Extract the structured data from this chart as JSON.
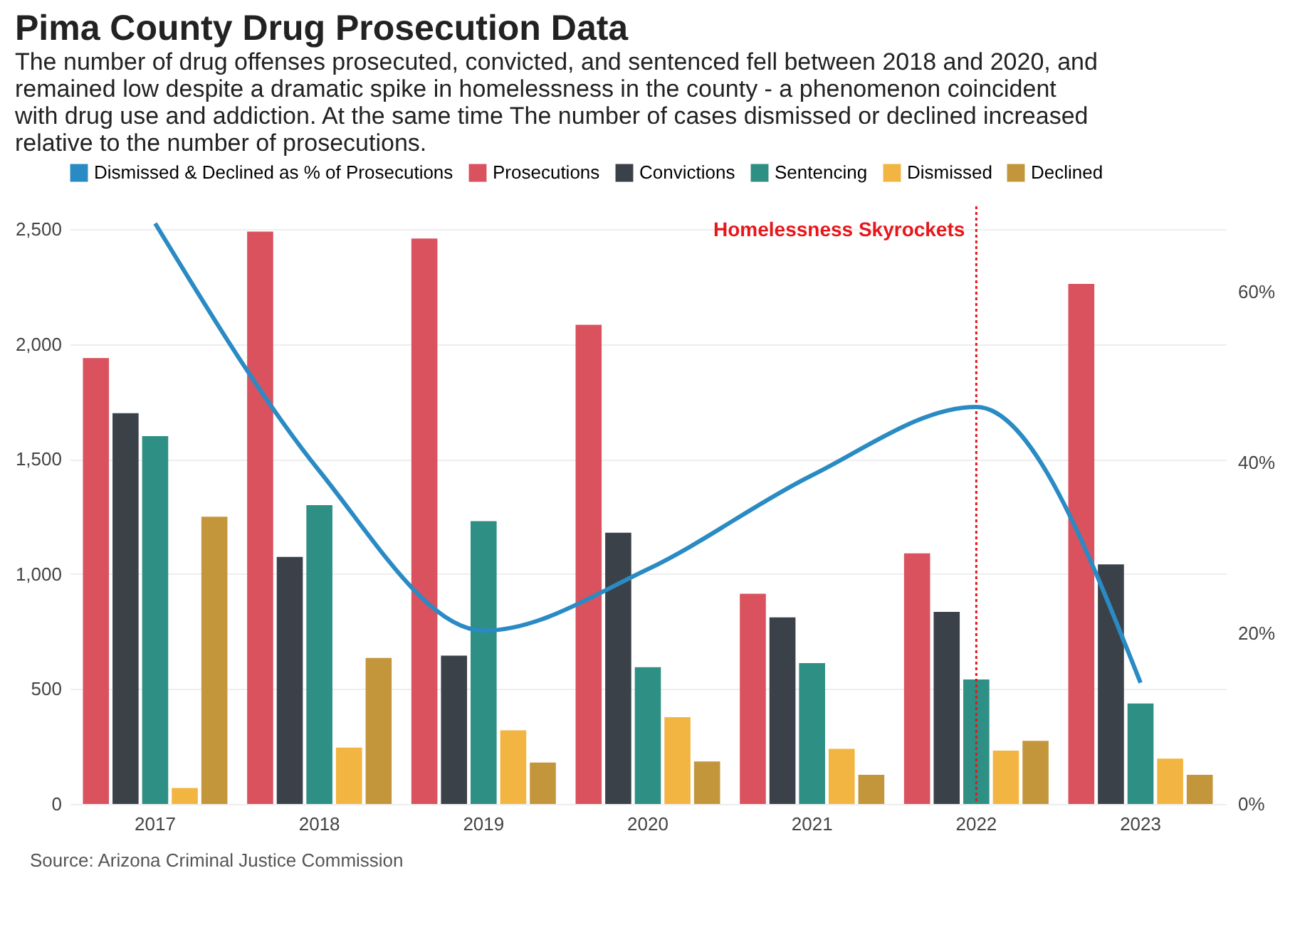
{
  "chart_data": {
    "type": "bar",
    "title": "Pima County Drug Prosecution Data",
    "subtitle": "The number of drug offenses prosecuted, convicted, and sentenced fell between 2018 and 2020, and remained low despite a dramatic spike in homelessness in the county - a phenomenon coincident with drug use and addiction. At the same time The number of cases dismissed or declined increased relative to the number of prosecutions.",
    "categories": [
      "2017",
      "2018",
      "2019",
      "2020",
      "2021",
      "2022",
      "2023"
    ],
    "series": [
      {
        "name": "Dismissed & Declined as % of Prosecutions",
        "type": "line",
        "axis": "y2",
        "color": "#2a8bc4",
        "values": [
          68,
          39,
          20.3,
          27.5,
          38.5,
          46.5,
          14.2
        ]
      },
      {
        "name": "Prosecutions",
        "color": "#d9525e",
        "values": [
          1940,
          2490,
          2460,
          2085,
          915,
          1090,
          2263
        ]
      },
      {
        "name": "Convictions",
        "color": "#3a4149",
        "values": [
          1700,
          1075,
          645,
          1180,
          812,
          836,
          1042
        ]
      },
      {
        "name": "Sentencing",
        "color": "#2e8f84",
        "values": [
          1600,
          1300,
          1230,
          595,
          613,
          542,
          437
        ]
      },
      {
        "name": "Dismissed",
        "color": "#f2b542",
        "values": [
          70,
          245,
          320,
          378,
          240,
          232,
          197
        ]
      },
      {
        "name": "Declined",
        "color": "#c4963c",
        "values": [
          1250,
          635,
          180,
          185,
          127,
          275,
          127
        ]
      }
    ],
    "ylim": [
      0,
      2600
    ],
    "yticks": [
      0,
      500,
      {
        "value": 1000,
        "label": "1,000"
      },
      {
        "value": 1500,
        "label": "1,500"
      },
      {
        "value": 2000,
        "label": "2,000"
      },
      {
        "value": 2500,
        "label": "2,500"
      }
    ],
    "y2lim": [
      0,
      70
    ],
    "y2ticks": [
      {
        "value": 0,
        "label": "0%"
      },
      {
        "value": 20,
        "label": "20%"
      },
      {
        "value": 40,
        "label": "40%"
      },
      {
        "value": 60,
        "label": "60%"
      }
    ],
    "ref_lines": [
      {
        "axis": "x",
        "value": "2022",
        "label": "Homelessness Skyrockets",
        "color": "#e8161b",
        "line_style": "dotted"
      }
    ],
    "annotations": [
      "Source: Arizona Criminal Justice Commission"
    ],
    "grid": "y",
    "legend": "top"
  }
}
